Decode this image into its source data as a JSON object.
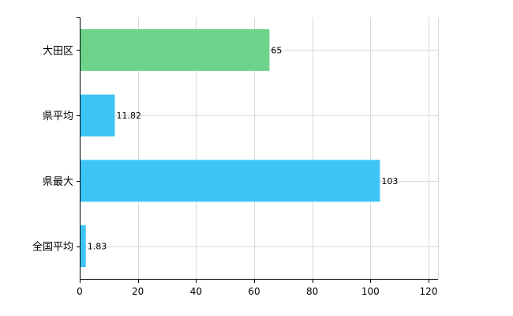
{
  "chart_data": {
    "type": "bar",
    "orientation": "horizontal",
    "categories": [
      "大田区",
      "県平均",
      "県最大",
      "全国平均"
    ],
    "values": [
      65,
      11.82,
      103,
      1.83
    ],
    "value_labels": [
      "65",
      "11.82",
      "103",
      "1.83"
    ],
    "bar_colors": [
      "#6dd38a",
      "#3dc5f5",
      "#3dc5f5",
      "#3dc5f5"
    ],
    "xlim": [
      0,
      120
    ],
    "x_ticks": [
      0,
      20,
      40,
      60,
      80,
      100,
      120
    ],
    "title": "",
    "xlabel": "",
    "ylabel": "",
    "grid": true,
    "legend": "none"
  }
}
